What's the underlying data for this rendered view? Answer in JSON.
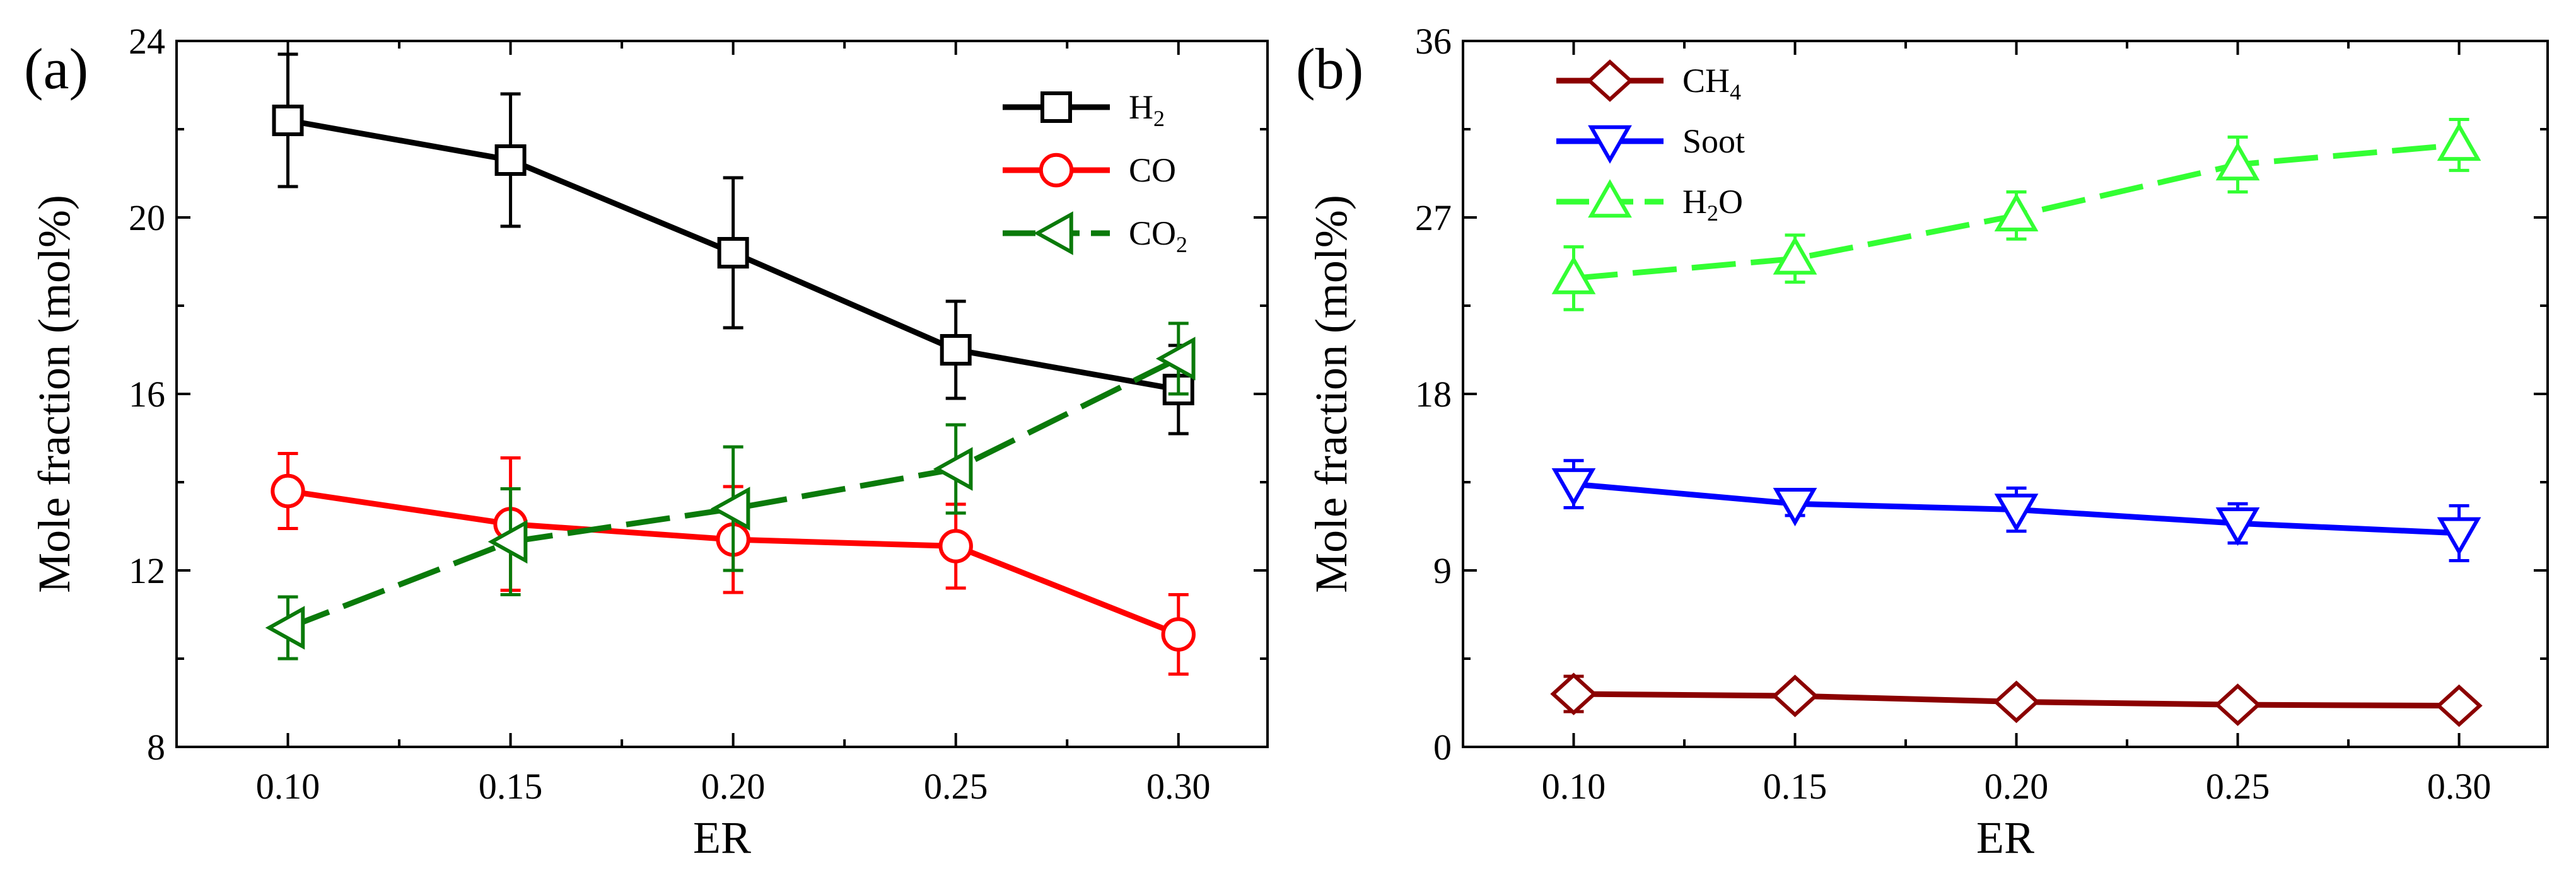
{
  "chart_data": [
    {
      "panel_label": "(a)",
      "type": "line",
      "xlabel": "ER",
      "ylabel": "Mole fraction (mol%)",
      "xlim": [
        0.075,
        0.32
      ],
      "ylim": [
        8,
        24
      ],
      "x": [
        0.1,
        0.15,
        0.2,
        0.25,
        0.3
      ],
      "x_ticks": [
        "0.10",
        "0.15",
        "0.20",
        "0.25",
        "0.30"
      ],
      "y_ticks": [
        8,
        12,
        16,
        20,
        24
      ],
      "y_tick_labels": [
        "8",
        "12",
        "16",
        "20",
        "24"
      ],
      "legend_position": "top-right",
      "series": [
        {
          "name": "H2",
          "label_main": "H",
          "label_sub": "2",
          "label_tail": "",
          "color": "#000000",
          "marker": "square",
          "dash": "solid",
          "values": [
            22.2,
            21.3,
            19.2,
            17.0,
            16.1
          ],
          "errors": [
            1.5,
            1.5,
            1.7,
            1.1,
            1.0
          ]
        },
        {
          "name": "CO",
          "label_main": "CO",
          "label_sub": "",
          "label_tail": "",
          "color": "#ff0000",
          "marker": "circle",
          "dash": "solid",
          "values": [
            13.8,
            13.05,
            12.7,
            12.55,
            10.55
          ],
          "errors": [
            0.85,
            1.5,
            1.2,
            0.95,
            0.9
          ]
        },
        {
          "name": "CO2",
          "label_main": "CO",
          "label_sub": "2",
          "label_tail": "",
          "color": "#0a7a0a",
          "marker": "triangle-left",
          "dash": "dashed",
          "values": [
            10.7,
            12.65,
            13.4,
            14.3,
            16.8
          ],
          "errors": [
            0.7,
            1.2,
            1.4,
            1.0,
            0.8
          ]
        }
      ]
    },
    {
      "panel_label": "(b)",
      "type": "line",
      "xlabel": "ER",
      "ylabel": "Mole fraction (mol%)",
      "xlim": [
        0.075,
        0.32
      ],
      "ylim": [
        0,
        36
      ],
      "x": [
        0.1,
        0.15,
        0.2,
        0.25,
        0.3
      ],
      "x_ticks": [
        "0.10",
        "0.15",
        "0.20",
        "0.25",
        "0.30"
      ],
      "y_ticks": [
        0,
        9,
        18,
        27,
        36
      ],
      "y_tick_labels": [
        "0",
        "9",
        "18",
        "27",
        "36"
      ],
      "legend_position": "top-left",
      "series": [
        {
          "name": "CH4",
          "label_main": "CH",
          "label_sub": "4",
          "label_tail": "",
          "color": "#8b0000",
          "marker": "diamond",
          "dash": "solid",
          "values": [
            2.7,
            2.6,
            2.3,
            2.15,
            2.1
          ],
          "errors": [
            0.9,
            0.3,
            0.3,
            0.3,
            0.3
          ]
        },
        {
          "name": "Soot",
          "label_main": "Soot",
          "label_sub": "",
          "label_tail": "",
          "color": "#0000ff",
          "marker": "triangle-down",
          "dash": "solid",
          "values": [
            13.4,
            12.4,
            12.1,
            11.4,
            10.9
          ],
          "errors": [
            1.2,
            0.6,
            1.1,
            1.0,
            1.4
          ]
        },
        {
          "name": "H2O",
          "label_main": "H",
          "label_sub": "2",
          "label_tail": "O",
          "color": "#33ff33",
          "marker": "triangle-up",
          "dash": "dashed",
          "values": [
            23.9,
            24.9,
            27.1,
            29.7,
            30.7
          ],
          "errors": [
            1.6,
            1.2,
            1.2,
            1.4,
            1.3
          ]
        }
      ]
    }
  ]
}
